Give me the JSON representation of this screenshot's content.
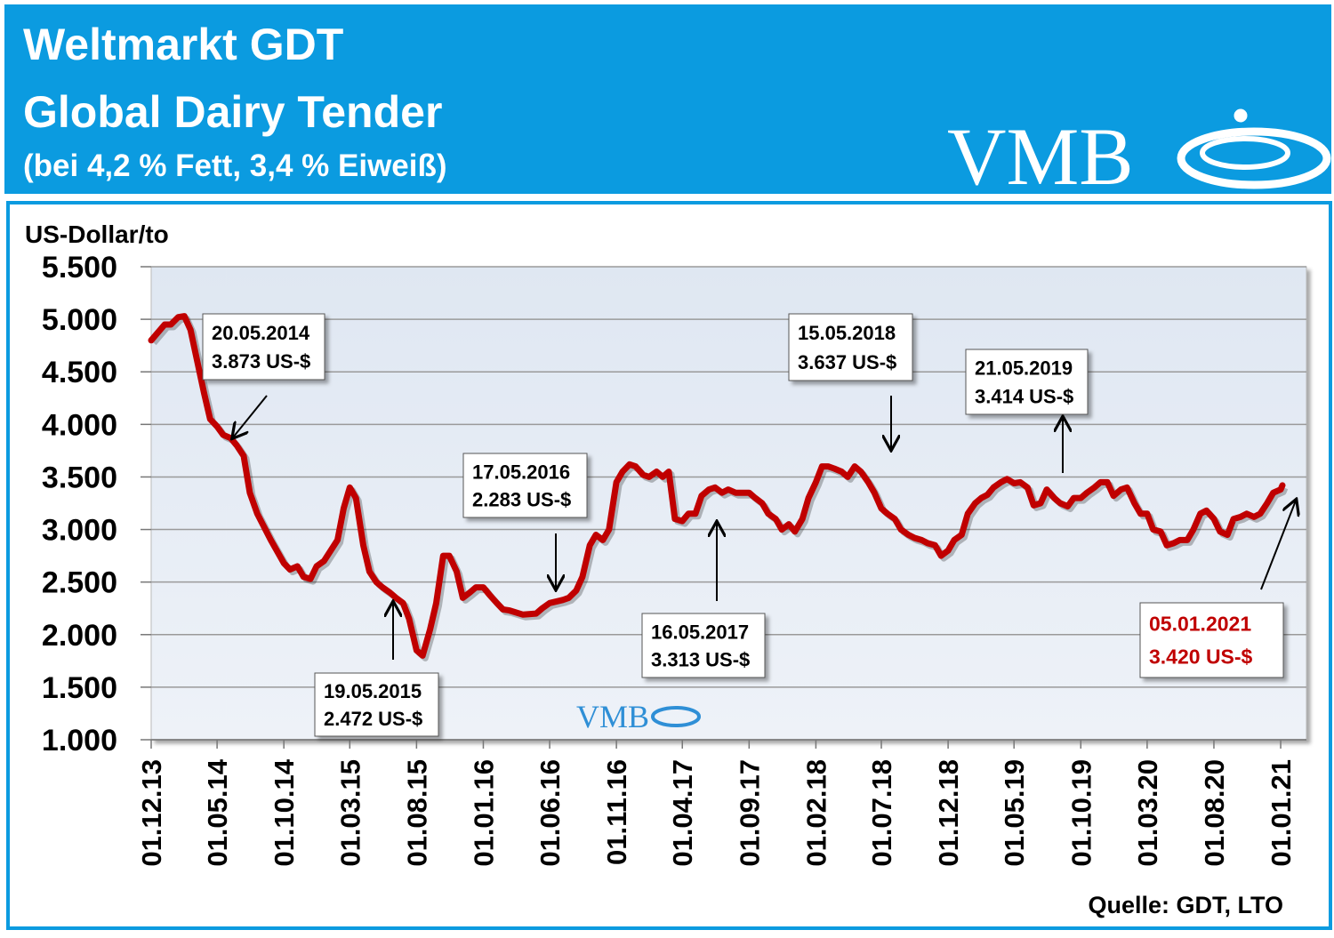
{
  "header": {
    "title": "Weltmarkt GDT",
    "title2": "Global Dairy Tender",
    "subtitle": "(bei 4,2 % Fett, 3,4 % Eiweiß)",
    "logo": "VMB"
  },
  "chart_data": {
    "type": "line",
    "y_label": "US-Dollar/to",
    "source": "Quelle: GDT, LTO",
    "color": "#c00000",
    "grid": true,
    "ylim": [
      1000,
      5500
    ],
    "yticks": [
      {
        "value": 1000,
        "label": "1.000"
      },
      {
        "value": 1500,
        "label": "1.500"
      },
      {
        "value": 2000,
        "label": "2.000"
      },
      {
        "value": 2500,
        "label": "2.500"
      },
      {
        "value": 3000,
        "label": "3.000"
      },
      {
        "value": 3500,
        "label": "3.500"
      },
      {
        "value": 4000,
        "label": "4.000"
      },
      {
        "value": 4500,
        "label": "4.500"
      },
      {
        "value": 5000,
        "label": "5.000"
      },
      {
        "value": 5500,
        "label": "5.500"
      }
    ],
    "xlim": [
      "2013-12-01",
      "2021-03-01"
    ],
    "xticks": [
      {
        "value": "2013-12-01",
        "label": "01.12.13"
      },
      {
        "value": "2014-05-01",
        "label": "01.05.14"
      },
      {
        "value": "2014-10-01",
        "label": "01.10.14"
      },
      {
        "value": "2015-03-01",
        "label": "01.03.15"
      },
      {
        "value": "2015-08-01",
        "label": "01.08.15"
      },
      {
        "value": "2016-01-01",
        "label": "01.01.16"
      },
      {
        "value": "2016-06-01",
        "label": "01.06.16"
      },
      {
        "value": "2016-11-01",
        "label": "01.11.16"
      },
      {
        "value": "2017-04-01",
        "label": "01.04.17"
      },
      {
        "value": "2017-09-01",
        "label": "01.09.17"
      },
      {
        "value": "2018-02-01",
        "label": "01.02.18"
      },
      {
        "value": "2018-07-01",
        "label": "01.07.18"
      },
      {
        "value": "2018-12-01",
        "label": "01.12.18"
      },
      {
        "value": "2019-05-01",
        "label": "01.05.19"
      },
      {
        "value": "2019-10-01",
        "label": "01.10.19"
      },
      {
        "value": "2020-03-01",
        "label": "01.03.20"
      },
      {
        "value": "2020-08-01",
        "label": "01.08.20"
      },
      {
        "value": "2021-01-01",
        "label": "01.01.21"
      }
    ],
    "x": [
      "2013-12-01",
      "2014-01-01",
      "2014-01-15",
      "2014-02-01",
      "2014-02-15",
      "2014-03-01",
      "2014-04-01",
      "2014-04-15",
      "2014-05-01",
      "2014-05-15",
      "2014-06-01",
      "2014-06-15",
      "2014-07-01",
      "2014-07-15",
      "2014-08-01",
      "2014-09-01",
      "2014-10-01",
      "2014-10-15",
      "2014-11-01",
      "2014-11-15",
      "2014-12-01",
      "2014-12-15",
      "2015-01-01",
      "2015-02-01",
      "2015-02-15",
      "2015-03-01",
      "2015-03-15",
      "2015-04-01",
      "2015-04-15",
      "2015-05-01",
      "2015-05-15",
      "2015-06-01",
      "2015-06-15",
      "2015-07-01",
      "2015-07-15",
      "2015-08-01",
      "2015-08-15",
      "2015-09-01",
      "2015-09-15",
      "2015-10-01",
      "2015-10-15",
      "2015-11-01",
      "2015-11-15",
      "2015-12-01",
      "2015-12-15",
      "2016-01-01",
      "2016-01-15",
      "2016-02-01",
      "2016-02-15",
      "2016-03-01",
      "2016-04-01",
      "2016-05-01",
      "2016-05-15",
      "2016-06-01",
      "2016-07-01",
      "2016-07-15",
      "2016-08-01",
      "2016-08-15",
      "2016-09-01",
      "2016-09-15",
      "2016-10-01",
      "2016-10-15",
      "2016-11-01",
      "2016-11-15",
      "2016-12-01",
      "2016-12-15",
      "2017-01-01",
      "2017-01-15",
      "2017-02-01",
      "2017-02-15",
      "2017-03-01",
      "2017-03-15",
      "2017-04-01",
      "2017-04-15",
      "2017-05-01",
      "2017-05-15",
      "2017-06-01",
      "2017-06-15",
      "2017-07-01",
      "2017-07-15",
      "2017-08-01",
      "2017-09-01",
      "2017-09-15",
      "2017-10-01",
      "2017-10-15",
      "2017-11-01",
      "2017-11-15",
      "2017-12-01",
      "2017-12-15",
      "2018-01-01",
      "2018-01-15",
      "2018-02-01",
      "2018-02-15",
      "2018-03-01",
      "2018-03-15",
      "2018-04-01",
      "2018-04-15",
      "2018-05-01",
      "2018-05-15",
      "2018-06-01",
      "2018-06-15",
      "2018-07-01",
      "2018-07-15",
      "2018-08-01",
      "2018-08-15",
      "2018-09-01",
      "2018-09-15",
      "2018-10-01",
      "2018-10-15",
      "2018-11-01",
      "2018-11-15",
      "2018-12-01",
      "2018-12-15",
      "2019-01-01",
      "2019-01-15",
      "2019-02-01",
      "2019-02-15",
      "2019-03-01",
      "2019-03-15",
      "2019-04-01",
      "2019-04-15",
      "2019-05-01",
      "2019-05-15",
      "2019-06-01",
      "2019-06-15",
      "2019-07-01",
      "2019-07-15",
      "2019-08-01",
      "2019-08-15",
      "2019-09-01",
      "2019-09-15",
      "2019-10-01",
      "2019-10-15",
      "2019-11-01",
      "2019-11-15",
      "2019-12-01",
      "2019-12-15",
      "2020-01-01",
      "2020-01-15",
      "2020-02-01",
      "2020-02-15",
      "2020-03-01",
      "2020-03-15",
      "2020-04-01",
      "2020-04-15",
      "2020-05-01",
      "2020-05-15",
      "2020-06-01",
      "2020-06-15",
      "2020-07-01",
      "2020-07-15",
      "2020-08-01",
      "2020-08-15",
      "2020-09-01",
      "2020-09-15",
      "2020-10-01",
      "2020-10-15",
      "2020-11-01",
      "2020-11-15",
      "2020-12-01",
      "2020-12-15",
      "2021-01-01",
      "2021-01-05"
    ],
    "values": [
      4800,
      4950,
      4950,
      5020,
      5030,
      4900,
      4300,
      4050,
      3980,
      3900,
      3870,
      3800,
      3700,
      3350,
      3150,
      2900,
      2680,
      2620,
      2650,
      2550,
      2530,
      2650,
      2700,
      2900,
      3200,
      3400,
      3300,
      2850,
      2600,
      2500,
      2450,
      2400,
      2350,
      2300,
      2150,
      1850,
      1800,
      2050,
      2300,
      2750,
      2750,
      2600,
      2350,
      2400,
      2450,
      2450,
      2380,
      2300,
      2240,
      2230,
      2190,
      2200,
      2250,
      2300,
      2330,
      2350,
      2420,
      2550,
      2850,
      2950,
      2900,
      3000,
      3450,
      3550,
      3620,
      3600,
      3520,
      3500,
      3550,
      3500,
      3550,
      3100,
      3080,
      3150,
      3150,
      3320,
      3380,
      3400,
      3350,
      3380,
      3350,
      3350,
      3300,
      3250,
      3150,
      3100,
      3000,
      3050,
      2980,
      3100,
      3300,
      3450,
      3600,
      3600,
      3580,
      3550,
      3500,
      3600,
      3550,
      3450,
      3350,
      3200,
      3150,
      3100,
      3000,
      2950,
      2920,
      2900,
      2870,
      2850,
      2750,
      2800,
      2900,
      2950,
      3150,
      3250,
      3300,
      3330,
      3400,
      3450,
      3480,
      3440,
      3450,
      3400,
      3230,
      3250,
      3380,
      3300,
      3250,
      3220,
      3300,
      3300,
      3350,
      3400,
      3450,
      3450,
      3320,
      3380,
      3400,
      3250,
      3150,
      3150,
      3000,
      2980,
      2850,
      2870,
      2900,
      2900,
      3000,
      3150,
      3180,
      3100,
      2980,
      2950,
      3100,
      3120,
      3150,
      3120,
      3150,
      3250,
      3350,
      3380,
      3420
    ],
    "annotations": [
      {
        "lines": [
          "20.05.2014",
          "3.873 US-$"
        ]
      },
      {
        "lines": [
          "19.05.2015",
          "2.472 US-$"
        ]
      },
      {
        "lines": [
          "17.05.2016",
          "2.283 US-$"
        ]
      },
      {
        "lines": [
          "16.05.2017",
          "3.313 US-$"
        ]
      },
      {
        "lines": [
          "15.05.2018",
          "3.637 US-$"
        ]
      },
      {
        "lines": [
          "21.05.2019",
          "3.414 US-$"
        ]
      },
      {
        "lines": [
          "05.01.2021",
          "3.420 US-$"
        ],
        "color": "#c00000"
      }
    ]
  }
}
